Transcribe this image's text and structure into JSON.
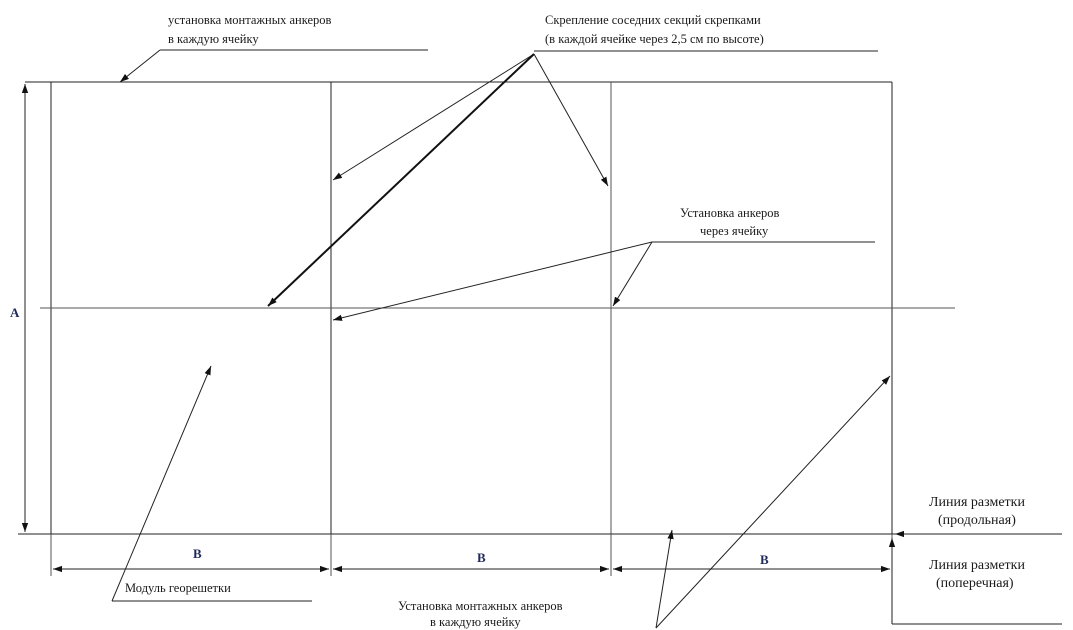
{
  "labels": {
    "anchors_each_cell_top": [
      "установка монтажных анкеров",
      "в каждую ячейку"
    ],
    "stapling": [
      "Скрепление соседних секций скрепками",
      "(в каждой ячейке через 2,5 см по высоте)"
    ],
    "anchors_every_other_cell": [
      "Установка анкеров",
      "через ячейку"
    ],
    "module": "Модуль георешетки",
    "anchors_each_cell_bottom": [
      "Установка монтажных анкеров",
      "в каждую ячейку"
    ],
    "marking_longitudinal": [
      "Линия разметки",
      "(продольная)"
    ],
    "marking_transverse": [
      "Линия разметки",
      "(поперечная)"
    ]
  },
  "dimensions": {
    "height": "A",
    "widths": [
      "B",
      "B",
      "B"
    ]
  },
  "colors": {
    "line": "#222222",
    "dimension_text": "#1f2a5a"
  }
}
